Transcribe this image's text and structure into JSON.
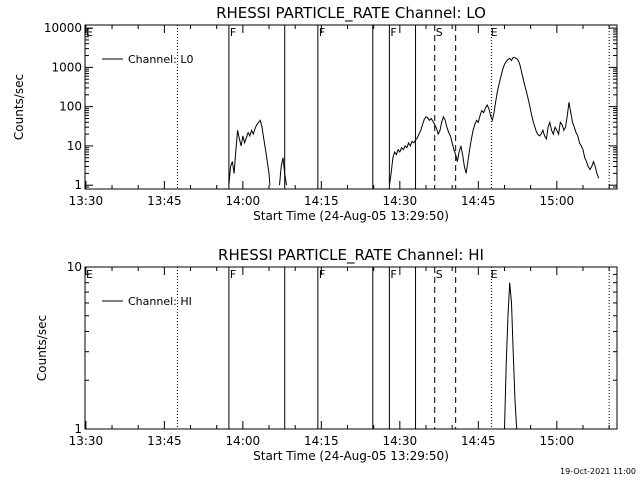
{
  "footer": {
    "timestamp": "19-Oct-2021 11:00"
  },
  "colors": {
    "foreground": "#000000",
    "background": "#ffffff"
  },
  "chart_data": [
    {
      "type": "line",
      "title": "RHESSI PARTICLE_RATE Channel: LO",
      "xlabel": "Start Time (24-Aug-05 13:29:50)",
      "ylabel": "Counts/sec",
      "y_scale": "log",
      "ylim": [
        0.8,
        12000
      ],
      "xlim": [
        "13:29:50",
        "15:11:30"
      ],
      "x_ticks": [
        "13:30",
        "13:45",
        "14:00",
        "14:15",
        "14:30",
        "14:45",
        "15:00"
      ],
      "y_ticks": [
        {
          "value": 1,
          "label": "1"
        },
        {
          "value": 10,
          "label": "10"
        },
        {
          "value": 100,
          "label": "100"
        },
        {
          "value": 1000,
          "label": "1000"
        },
        {
          "value": 10000,
          "label": "10000"
        }
      ],
      "legend": {
        "position": "top-left",
        "entries": [
          "Channel: L0"
        ]
      },
      "flag_markers": [
        {
          "label": "E",
          "time": "13:29:50"
        },
        {
          "label": "F",
          "time": "13:57:20"
        },
        {
          "label": "F",
          "time": "14:14:20"
        },
        {
          "label": "F",
          "time": "14:28:00"
        },
        {
          "label": "S",
          "time": "14:36:40"
        },
        {
          "label": "E",
          "time": "14:47:10"
        }
      ],
      "vlines": [
        {
          "time": "13:47:30",
          "style": "dotted"
        },
        {
          "time": "13:57:20",
          "style": "solid"
        },
        {
          "time": "14:08:00",
          "style": "solid"
        },
        {
          "time": "14:14:20",
          "style": "solid"
        },
        {
          "time": "14:24:50",
          "style": "solid"
        },
        {
          "time": "14:28:00",
          "style": "solid"
        },
        {
          "time": "14:33:00",
          "style": "solid"
        },
        {
          "time": "14:36:40",
          "style": "dashed"
        },
        {
          "time": "14:40:40",
          "style": "dashed"
        },
        {
          "time": "14:47:30",
          "style": "dotted"
        },
        {
          "time": "15:10:00",
          "style": "dotted"
        }
      ],
      "series": [
        {
          "segments": [
            [
              [
                "13:57:20",
                1
              ],
              [
                "13:57:40",
                3
              ],
              [
                "13:58:00",
                4
              ],
              [
                "13:58:20",
                2
              ],
              [
                "13:58:40",
                8
              ],
              [
                "13:59:00",
                25
              ],
              [
                "13:59:20",
                15
              ],
              [
                "13:59:40",
                10
              ],
              [
                "14:00:00",
                18
              ],
              [
                "14:00:20",
                12
              ],
              [
                "14:00:40",
                16
              ],
              [
                "14:01:00",
                22
              ],
              [
                "14:01:20",
                18
              ],
              [
                "14:01:40",
                25
              ],
              [
                "14:02:00",
                20
              ],
              [
                "14:02:20",
                28
              ],
              [
                "14:02:40",
                35
              ],
              [
                "14:03:00",
                40
              ],
              [
                "14:03:20",
                45
              ],
              [
                "14:03:40",
                30
              ],
              [
                "14:04:00",
                15
              ],
              [
                "14:04:20",
                8
              ],
              [
                "14:04:40",
                4
              ],
              [
                "14:05:00",
                2
              ],
              [
                "14:05:10",
                1
              ]
            ],
            [
              [
                "14:07:00",
                1
              ],
              [
                "14:07:20",
                3
              ],
              [
                "14:07:40",
                5
              ],
              [
                "14:08:00",
                2
              ],
              [
                "14:08:20",
                1
              ]
            ],
            [
              [
                "14:28:00",
                1
              ],
              [
                "14:28:20",
                2
              ],
              [
                "14:28:40",
                5
              ],
              [
                "14:29:00",
                7
              ],
              [
                "14:29:20",
                6
              ],
              [
                "14:29:40",
                8
              ],
              [
                "14:30:00",
                7
              ],
              [
                "14:30:20",
                9
              ],
              [
                "14:30:40",
                8
              ],
              [
                "14:31:00",
                10
              ],
              [
                "14:31:20",
                9
              ],
              [
                "14:31:40",
                12
              ],
              [
                "14:32:00",
                10
              ],
              [
                "14:32:20",
                13
              ],
              [
                "14:32:40",
                12
              ],
              [
                "14:33:00",
                14
              ],
              [
                "14:33:20",
                16
              ],
              [
                "14:33:40",
                20
              ],
              [
                "14:34:00",
                25
              ],
              [
                "14:34:20",
                35
              ],
              [
                "14:34:40",
                48
              ],
              [
                "14:35:00",
                55
              ],
              [
                "14:35:20",
                52
              ],
              [
                "14:35:40",
                45
              ],
              [
                "14:36:00",
                50
              ],
              [
                "14:36:20",
                42
              ],
              [
                "14:36:40",
                35
              ],
              [
                "14:37:00",
                28
              ],
              [
                "14:37:20",
                20
              ],
              [
                "14:37:40",
                25
              ],
              [
                "14:38:00",
                40
              ],
              [
                "14:38:20",
                55
              ],
              [
                "14:38:40",
                45
              ],
              [
                "14:39:00",
                30
              ],
              [
                "14:39:20",
                22
              ],
              [
                "14:39:40",
                18
              ],
              [
                "14:40:00",
                12
              ],
              [
                "14:40:20",
                8
              ],
              [
                "14:40:40",
                6
              ],
              [
                "14:41:00",
                4
              ],
              [
                "14:41:20",
                7
              ],
              [
                "14:41:40",
                10
              ],
              [
                "14:42:00",
                6
              ],
              [
                "14:42:20",
                3
              ],
              [
                "14:42:40",
                2
              ],
              [
                "14:43:00",
                4
              ],
              [
                "14:43:20",
                8
              ],
              [
                "14:43:40",
                15
              ],
              [
                "14:44:00",
                25
              ],
              [
                "14:44:20",
                35
              ],
              [
                "14:44:40",
                45
              ],
              [
                "14:45:00",
                40
              ],
              [
                "14:45:20",
                60
              ],
              [
                "14:45:40",
                80
              ],
              [
                "14:46:00",
                70
              ],
              [
                "14:46:20",
                90
              ],
              [
                "14:46:40",
                110
              ],
              [
                "14:47:00",
                90
              ],
              [
                "14:47:20",
                60
              ],
              [
                "14:47:40",
                45
              ],
              [
                "14:48:00",
                70
              ],
              [
                "14:48:20",
                140
              ],
              [
                "14:48:40",
                250
              ],
              [
                "14:49:00",
                400
              ],
              [
                "14:49:20",
                600
              ],
              [
                "14:49:40",
                900
              ],
              [
                "14:50:00",
                1200
              ],
              [
                "14:50:20",
                1400
              ],
              [
                "14:50:40",
                1600
              ],
              [
                "14:51:00",
                1700
              ],
              [
                "14:51:20",
                1500
              ],
              [
                "14:51:40",
                1800
              ],
              [
                "14:52:00",
                1750
              ],
              [
                "14:52:20",
                1650
              ],
              [
                "14:52:40",
                1500
              ],
              [
                "14:53:00",
                1100
              ],
              [
                "14:53:20",
                700
              ],
              [
                "14:53:40",
                450
              ],
              [
                "14:54:00",
                300
              ],
              [
                "14:54:20",
                200
              ],
              [
                "14:54:40",
                130
              ],
              [
                "14:55:00",
                80
              ],
              [
                "14:55:20",
                50
              ],
              [
                "14:55:40",
                35
              ],
              [
                "14:56:00",
                25
              ],
              [
                "14:56:20",
                20
              ],
              [
                "14:56:40",
                18
              ],
              [
                "14:57:00",
                20
              ],
              [
                "14:57:20",
                25
              ],
              [
                "14:57:40",
                18
              ],
              [
                "14:58:00",
                15
              ],
              [
                "14:58:20",
                30
              ],
              [
                "14:58:40",
                40
              ],
              [
                "14:59:00",
                25
              ],
              [
                "14:59:20",
                20
              ],
              [
                "14:59:40",
                30
              ],
              [
                "15:00:00",
                25
              ],
              [
                "15:00:20",
                20
              ],
              [
                "15:00:40",
                40
              ],
              [
                "15:01:00",
                35
              ],
              [
                "15:01:20",
                25
              ],
              [
                "15:01:40",
                30
              ],
              [
                "15:02:00",
                60
              ],
              [
                "15:02:20",
                130
              ],
              [
                "15:02:40",
                70
              ],
              [
                "15:03:00",
                40
              ],
              [
                "15:03:20",
                30
              ],
              [
                "15:03:40",
                22
              ],
              [
                "15:04:00",
                18
              ],
              [
                "15:04:20",
                12
              ],
              [
                "15:04:40",
                10
              ],
              [
                "15:05:00",
                8
              ],
              [
                "15:05:20",
                5
              ],
              [
                "15:05:40",
                4
              ],
              [
                "15:06:00",
                3
              ],
              [
                "15:06:20",
                2.5
              ],
              [
                "15:06:40",
                3
              ],
              [
                "15:07:00",
                4
              ],
              [
                "15:07:20",
                3
              ],
              [
                "15:07:40",
                2
              ],
              [
                "15:08:00",
                1.5
              ]
            ]
          ]
        }
      ]
    },
    {
      "type": "line",
      "title": "RHESSI PARTICLE_RATE Channel: HI",
      "xlabel": "Start Time (24-Aug-05 13:29:50)",
      "ylabel": "Counts/sec",
      "y_scale": "log",
      "ylim": [
        1,
        10
      ],
      "xlim": [
        "13:29:50",
        "15:11:30"
      ],
      "x_ticks": [
        "13:30",
        "13:45",
        "14:00",
        "14:15",
        "14:30",
        "14:45",
        "15:00"
      ],
      "y_ticks": [
        {
          "value": 1,
          "label": "1"
        },
        {
          "value": 10,
          "label": "10"
        }
      ],
      "legend": {
        "position": "top-left",
        "entries": [
          "Channel: HI"
        ]
      },
      "flag_markers": [
        {
          "label": "E",
          "time": "13:29:50"
        },
        {
          "label": "F",
          "time": "13:57:20"
        },
        {
          "label": "F",
          "time": "14:14:20"
        },
        {
          "label": "F",
          "time": "14:28:00"
        },
        {
          "label": "S",
          "time": "14:36:40"
        },
        {
          "label": "E",
          "time": "14:47:10"
        }
      ],
      "vlines": [
        {
          "time": "13:47:30",
          "style": "dotted"
        },
        {
          "time": "13:57:20",
          "style": "solid"
        },
        {
          "time": "14:08:00",
          "style": "solid"
        },
        {
          "time": "14:14:20",
          "style": "solid"
        },
        {
          "time": "14:24:50",
          "style": "solid"
        },
        {
          "time": "14:28:00",
          "style": "solid"
        },
        {
          "time": "14:33:00",
          "style": "solid"
        },
        {
          "time": "14:36:40",
          "style": "dashed"
        },
        {
          "time": "14:40:40",
          "style": "dashed"
        },
        {
          "time": "14:47:30",
          "style": "dotted"
        },
        {
          "time": "15:10:00",
          "style": "dotted"
        }
      ],
      "series": [
        {
          "segments": [
            [
              [
                "14:50:00",
                1
              ],
              [
                "14:50:20",
                2.5
              ],
              [
                "14:50:40",
                5
              ],
              [
                "14:51:00",
                8
              ],
              [
                "14:51:20",
                6
              ],
              [
                "14:51:40",
                3
              ],
              [
                "14:52:00",
                1.5
              ],
              [
                "14:52:20",
                1
              ]
            ]
          ]
        }
      ]
    }
  ]
}
